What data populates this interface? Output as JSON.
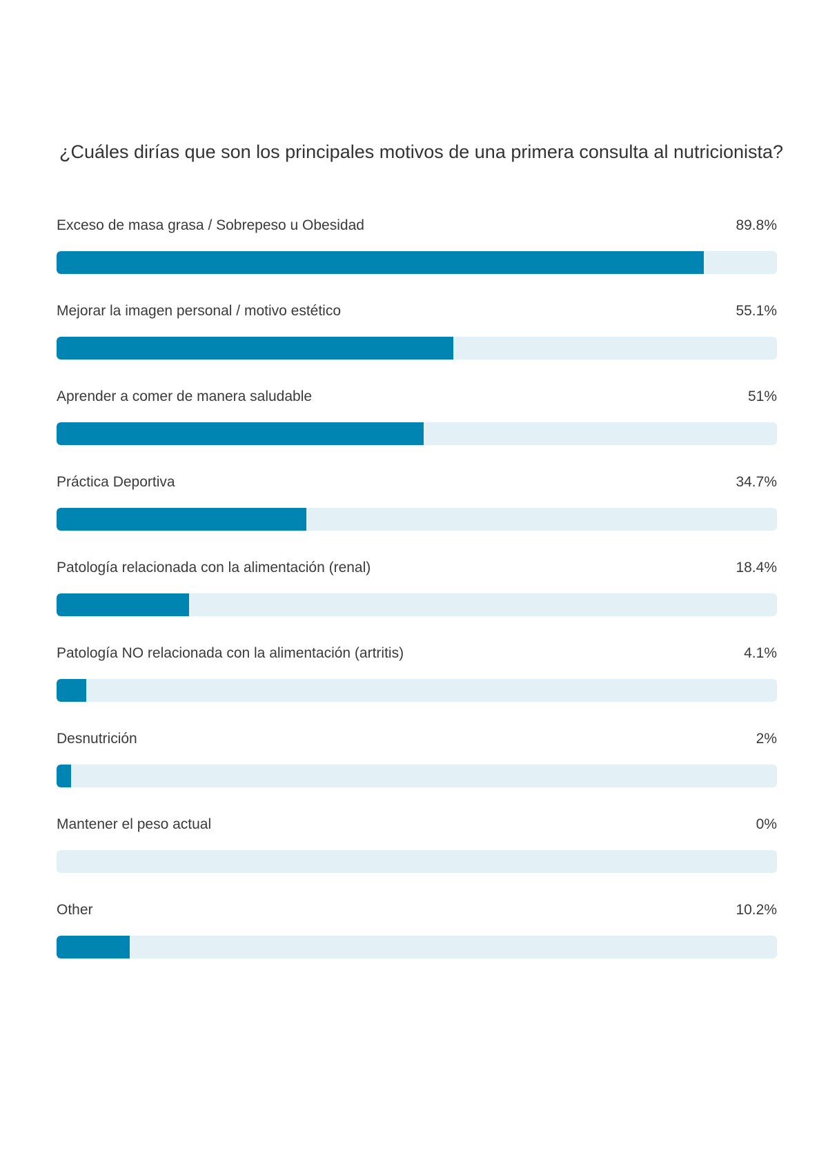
{
  "chart_data": {
    "type": "bar",
    "orientation": "horizontal",
    "title": "¿Cuáles dirías que son los principales motivos de una primera consulta al nutricionista?",
    "categories": [
      "Exceso de masa grasa / Sobrepeso u Obesidad",
      "Mejorar la imagen personal / motivo estético",
      "Aprender a comer de manera saludable",
      "Práctica Deportiva",
      "Patología relacionada con la alimentación (renal)",
      "Patología NO relacionada con la alimentación (artritis)",
      "Desnutrición",
      "Mantener el peso actual",
      "Other"
    ],
    "values": [
      89.8,
      55.1,
      51,
      34.7,
      18.4,
      4.1,
      2,
      0,
      10.2
    ],
    "value_labels": [
      "89.8%",
      "55.1%",
      "51%",
      "34.7%",
      "18.4%",
      "4.1%",
      "2%",
      "0%",
      "10.2%"
    ],
    "xlim": [
      0,
      100
    ],
    "grid": false,
    "legend": "none",
    "colors": {
      "bar": "#0085b2",
      "track": "#e3f0f6",
      "text": "#333333"
    }
  }
}
